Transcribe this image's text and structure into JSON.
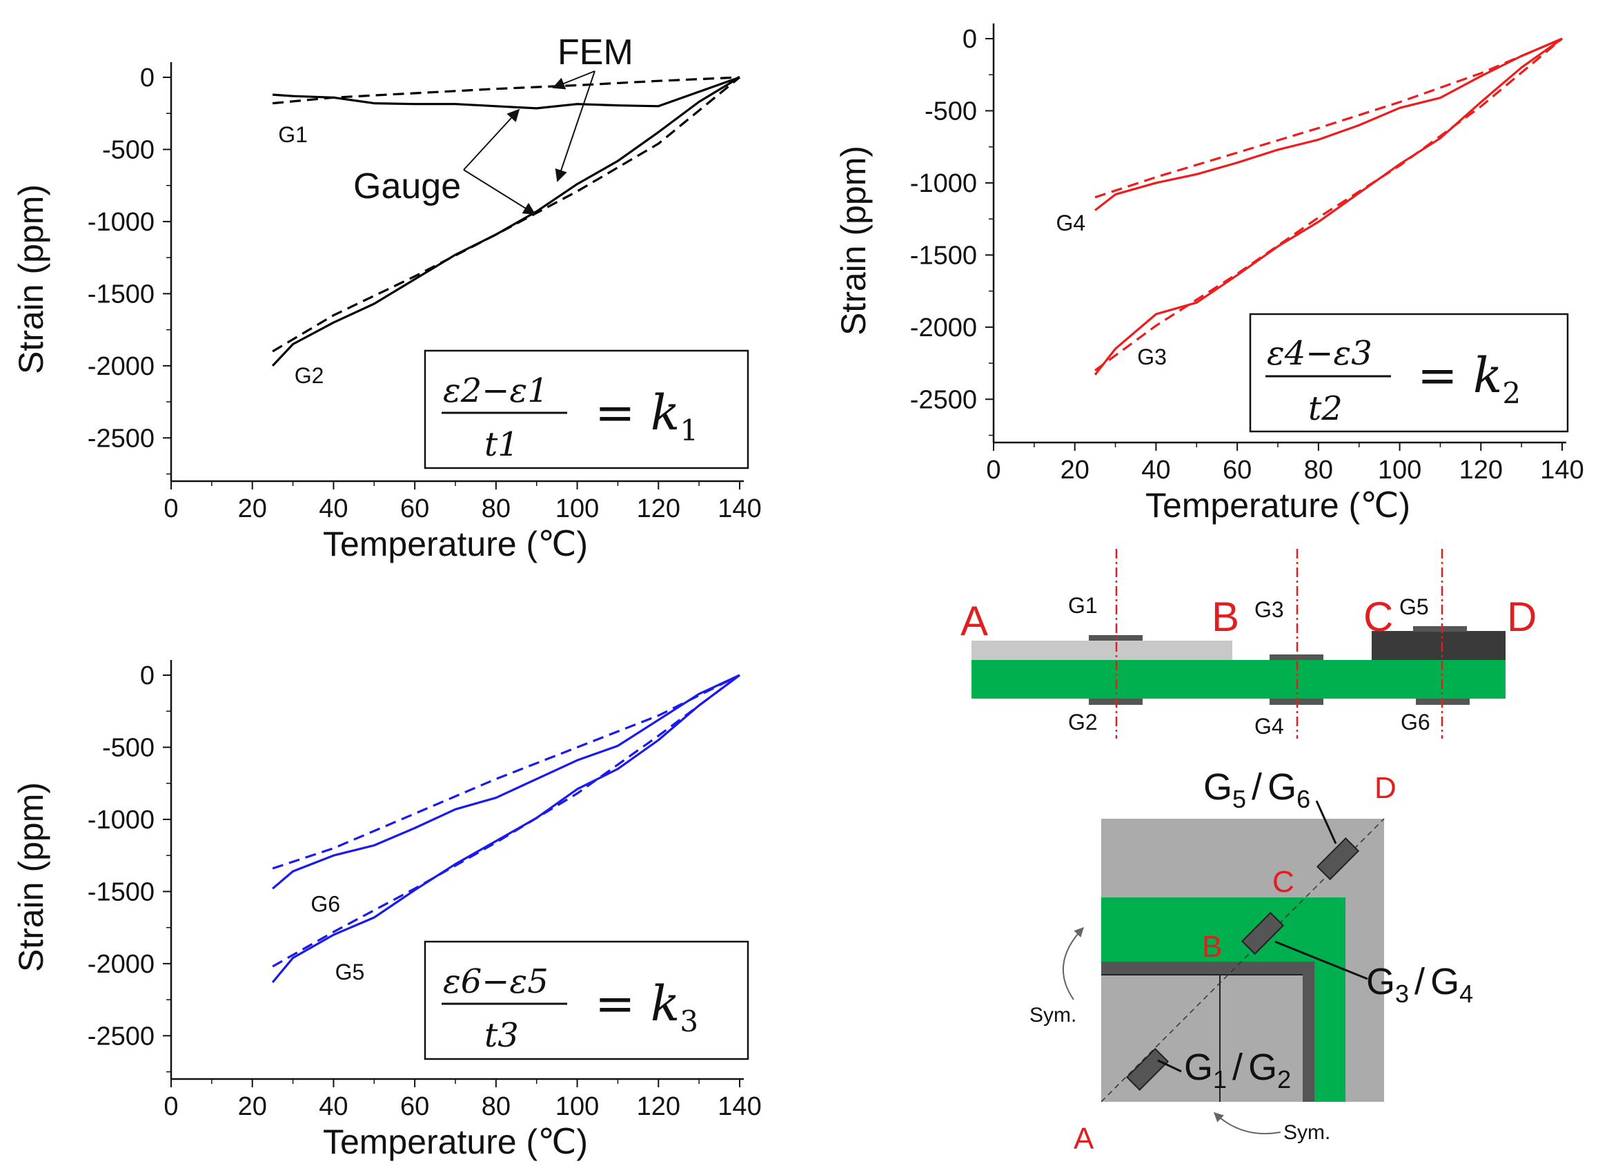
{
  "chart_data": [
    {
      "type": "line",
      "id": "p1",
      "xlabel": "Temperature (℃)",
      "ylabel": "Strain (ppm)",
      "xlim": [
        0,
        140
      ],
      "ylim": [
        -2800,
        0
      ],
      "xticks": [
        0,
        20,
        40,
        60,
        80,
        100,
        120,
        140
      ],
      "yticks": [
        0,
        -500,
        -1000,
        -1500,
        -2000,
        -2500
      ],
      "color": "#000000",
      "series": [
        {
          "name": "G1 Gauge",
          "style": "solid",
          "x": [
            25,
            30,
            40,
            50,
            60,
            70,
            80,
            90,
            100,
            110,
            120,
            130,
            140
          ],
          "y": [
            -120,
            -130,
            -140,
            -180,
            -185,
            -185,
            -200,
            -215,
            -185,
            -195,
            -200,
            -100,
            0
          ]
        },
        {
          "name": "G1 FEM",
          "style": "dashed",
          "x": [
            25,
            40,
            60,
            80,
            100,
            120,
            140
          ],
          "y": [
            -180,
            -140,
            -110,
            -80,
            -55,
            -25,
            0
          ]
        },
        {
          "name": "G2 Gauge",
          "style": "solid",
          "x": [
            25,
            30,
            40,
            50,
            60,
            70,
            80,
            90,
            100,
            110,
            120,
            130,
            140
          ],
          "y": [
            -2000,
            -1850,
            -1700,
            -1570,
            -1400,
            -1230,
            -1090,
            -930,
            -740,
            -580,
            -380,
            -170,
            0
          ]
        },
        {
          "name": "G2 FEM",
          "style": "dashed",
          "x": [
            25,
            40,
            60,
            80,
            100,
            120,
            140
          ],
          "y": [
            -1900,
            -1650,
            -1380,
            -1090,
            -790,
            -460,
            0
          ]
        }
      ],
      "point_labels": [
        {
          "text": "G1",
          "x": 30,
          "y": -450
        },
        {
          "text": "G2",
          "x": 34,
          "y": -2120
        }
      ],
      "annotations": {
        "fem": "FEM",
        "gauge": "Gauge"
      },
      "equation": {
        "num_a": "ε2",
        "num_b": "ε1",
        "minus": "−",
        "den": "t1",
        "rhs": "= k",
        "sub": "1"
      }
    },
    {
      "type": "line",
      "id": "p2",
      "xlabel": "Temperature (℃)",
      "ylabel": "Strain (ppm)",
      "xlim": [
        0,
        140
      ],
      "ylim": [
        -2800,
        0
      ],
      "xticks": [
        0,
        20,
        40,
        60,
        80,
        100,
        120,
        140
      ],
      "yticks": [
        0,
        -500,
        -1000,
        -1500,
        -2000,
        -2500
      ],
      "color": "#ee1c1c",
      "series": [
        {
          "name": "G4 Gauge",
          "style": "solid",
          "x": [
            25,
            30,
            40,
            50,
            60,
            70,
            80,
            90,
            100,
            110,
            120,
            130,
            140
          ],
          "y": [
            -1190,
            -1080,
            -1000,
            -940,
            -860,
            -770,
            -700,
            -600,
            -480,
            -410,
            -260,
            -120,
            0
          ]
        },
        {
          "name": "G4 FEM",
          "style": "dashed",
          "x": [
            25,
            40,
            60,
            80,
            100,
            120,
            140
          ],
          "y": [
            -1100,
            -960,
            -790,
            -620,
            -440,
            -240,
            0
          ]
        },
        {
          "name": "G3 Gauge",
          "style": "solid",
          "x": [
            25,
            30,
            40,
            50,
            60,
            70,
            80,
            90,
            100,
            110,
            120,
            130,
            140
          ],
          "y": [
            -2330,
            -2150,
            -1910,
            -1830,
            -1640,
            -1440,
            -1270,
            -1070,
            -870,
            -690,
            -440,
            -200,
            0
          ]
        },
        {
          "name": "G3 FEM",
          "style": "dashed",
          "x": [
            25,
            40,
            60,
            80,
            100,
            120,
            140
          ],
          "y": [
            -2300,
            -1990,
            -1630,
            -1240,
            -880,
            -470,
            0
          ]
        }
      ],
      "point_labels": [
        {
          "text": "G4",
          "x": 19,
          "y": -1330
        },
        {
          "text": "G3",
          "x": 39,
          "y": -2260
        }
      ],
      "equation": {
        "num_a": "ε4",
        "num_b": "ε3",
        "minus": "−",
        "den": "t2",
        "rhs": "= k",
        "sub": "2"
      }
    },
    {
      "type": "line",
      "id": "p3",
      "xlabel": "Temperature (℃)",
      "ylabel": "Strain (ppm)",
      "xlim": [
        0,
        140
      ],
      "ylim": [
        -2800,
        0
      ],
      "xticks": [
        0,
        20,
        40,
        60,
        80,
        100,
        120,
        140
      ],
      "yticks": [
        0,
        -500,
        -1000,
        -1500,
        -2000,
        -2500
      ],
      "color": "#1a1aee",
      "series": [
        {
          "name": "G6 Gauge",
          "style": "solid",
          "x": [
            25,
            30,
            40,
            50,
            60,
            70,
            80,
            90,
            100,
            110,
            120,
            130,
            140
          ],
          "y": [
            -1480,
            -1360,
            -1250,
            -1180,
            -1060,
            -930,
            -850,
            -720,
            -590,
            -490,
            -310,
            -130,
            0
          ]
        },
        {
          "name": "G6 FEM",
          "style": "dashed",
          "x": [
            25,
            40,
            60,
            80,
            100,
            120,
            140
          ],
          "y": [
            -1340,
            -1200,
            -960,
            -720,
            -500,
            -280,
            0
          ]
        },
        {
          "name": "G5 Gauge",
          "style": "solid",
          "x": [
            25,
            30,
            40,
            50,
            60,
            70,
            80,
            90,
            100,
            110,
            120,
            130,
            140
          ],
          "y": [
            -2130,
            -1960,
            -1800,
            -1680,
            -1490,
            -1310,
            -1150,
            -990,
            -790,
            -650,
            -450,
            -210,
            0
          ]
        },
        {
          "name": "G5 FEM",
          "style": "dashed",
          "x": [
            25,
            40,
            60,
            80,
            100,
            120,
            140
          ],
          "y": [
            -2020,
            -1780,
            -1480,
            -1160,
            -820,
            -420,
            0
          ]
        }
      ],
      "point_labels": [
        {
          "text": "G6",
          "x": 38,
          "y": -1640
        },
        {
          "text": "G5",
          "x": 44,
          "y": -2110
        }
      ],
      "equation": {
        "num_a": "ε6",
        "num_b": "ε5",
        "minus": "−",
        "den": "t3",
        "rhs": "= k",
        "sub": "3"
      }
    }
  ],
  "diagram": {
    "cross_section": {
      "section_labels": [
        "A",
        "B",
        "C",
        "D"
      ],
      "top_gauges": [
        "G1",
        "G3",
        "G5"
      ],
      "bottom_gauges": [
        "G2",
        "G4",
        "G6"
      ],
      "colors": {
        "substrate": "#00b04f",
        "light_layer": "#c8c8c8",
        "dark_layer": "#3a3a3a",
        "gauge": "#555555",
        "cut_line": "#e02020"
      }
    },
    "top_view": {
      "corner_labels": [
        "A",
        "B",
        "C",
        "D"
      ],
      "gauge_pairs": [
        {
          "base1": "G",
          "sub1": "5",
          "base2": "G",
          "sub2": "6"
        },
        {
          "base1": "G",
          "sub1": "3",
          "base2": "G",
          "sub2": "4"
        },
        {
          "base1": "G",
          "sub1": "1",
          "base2": "G",
          "sub2": "2"
        }
      ],
      "slash": "/",
      "sym_labels": [
        "Sym.",
        "Sym."
      ],
      "colors": {
        "board": "#ababab",
        "green": "#00b04f",
        "dark": "#555555"
      }
    }
  }
}
